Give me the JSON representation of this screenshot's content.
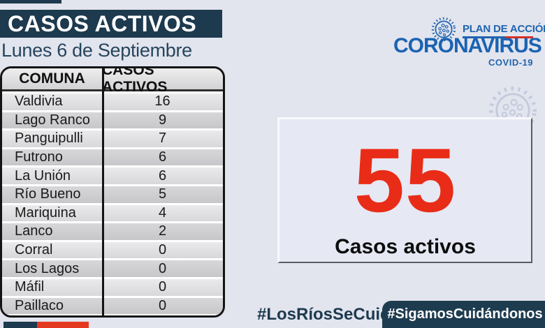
{
  "page": {
    "background": "#e2e4ee",
    "navy": "#1d3a4e",
    "accent_red": "#e92c17",
    "logo_blue": "#2065ae"
  },
  "header": {
    "title": "CASOS ACTIVOS",
    "date": "Lunes 6 de Septiembre"
  },
  "logo": {
    "plan_label": "PLAN DE ACCIÓN",
    "brand": "CORONAVIRUS",
    "subtitle": "COVID-19"
  },
  "table": {
    "headers": [
      "COMUNA",
      "CASOS ACTIVOS"
    ],
    "rows": [
      [
        "Valdivia",
        "16"
      ],
      [
        "Lago Ranco",
        "9"
      ],
      [
        "Panguipulli",
        "7"
      ],
      [
        "Futrono",
        "6"
      ],
      [
        "La Unión",
        "6"
      ],
      [
        "Río Bueno",
        "5"
      ],
      [
        "Mariquina",
        "4"
      ],
      [
        "Lanco",
        "2"
      ],
      [
        "Corral",
        "0"
      ],
      [
        "Los Lagos",
        "0"
      ],
      [
        "Máfil",
        "0"
      ],
      [
        "Paillaco",
        "0"
      ]
    ]
  },
  "summary": {
    "value": "55",
    "label": "Casos activos"
  },
  "hashtags": {
    "region": "#LosRíosSeCuida",
    "campaign": "#SigamosCuidándonos"
  },
  "chart_data": {
    "type": "table",
    "title": "CASOS ACTIVOS",
    "subtitle": "Lunes 6 de Septiembre",
    "columns": [
      "COMUNA",
      "CASOS ACTIVOS"
    ],
    "categories": [
      "Valdivia",
      "Lago Ranco",
      "Panguipulli",
      "Futrono",
      "La Unión",
      "Río Bueno",
      "Mariquina",
      "Lanco",
      "Corral",
      "Los Lagos",
      "Máfil",
      "Paillaco"
    ],
    "values": [
      16,
      9,
      7,
      6,
      6,
      5,
      4,
      2,
      0,
      0,
      0,
      0
    ],
    "total": 55,
    "total_label": "Casos activos"
  }
}
